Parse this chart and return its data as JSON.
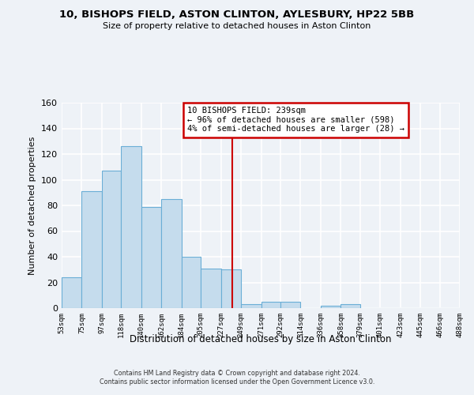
{
  "title": "10, BISHOPS FIELD, ASTON CLINTON, AYLESBURY, HP22 5BB",
  "subtitle": "Size of property relative to detached houses in Aston Clinton",
  "xlabel": "Distribution of detached houses by size in Aston Clinton",
  "ylabel": "Number of detached properties",
  "bin_edges": [
    53,
    75,
    97,
    118,
    140,
    162,
    184,
    205,
    227,
    249,
    271,
    292,
    314,
    336,
    358,
    379,
    401,
    423,
    445,
    466,
    488
  ],
  "bin_labels": [
    "53sqm",
    "75sqm",
    "97sqm",
    "118sqm",
    "140sqm",
    "162sqm",
    "184sqm",
    "205sqm",
    "227sqm",
    "249sqm",
    "271sqm",
    "292sqm",
    "314sqm",
    "336sqm",
    "358sqm",
    "379sqm",
    "401sqm",
    "423sqm",
    "445sqm",
    "466sqm",
    "488sqm"
  ],
  "counts": [
    24,
    91,
    107,
    126,
    79,
    85,
    40,
    31,
    30,
    3,
    5,
    5,
    0,
    2,
    3,
    0,
    0,
    0,
    0,
    0
  ],
  "bar_color": "#c5dced",
  "bar_edge_color": "#6aaed6",
  "property_size": 239,
  "vline_color": "#cc0000",
  "annotation_line1": "10 BISHOPS FIELD: 239sqm",
  "annotation_line2": "← 96% of detached houses are smaller (598)",
  "annotation_line3": "4% of semi-detached houses are larger (28) →",
  "annotation_box_color": "#ffffff",
  "annotation_border_color": "#cc0000",
  "ylim": [
    0,
    160
  ],
  "yticks": [
    0,
    20,
    40,
    60,
    80,
    100,
    120,
    140,
    160
  ],
  "background_color": "#eef2f7",
  "grid_color": "#ffffff",
  "footer_line1": "Contains HM Land Registry data © Crown copyright and database right 2024.",
  "footer_line2": "Contains public sector information licensed under the Open Government Licence v3.0."
}
